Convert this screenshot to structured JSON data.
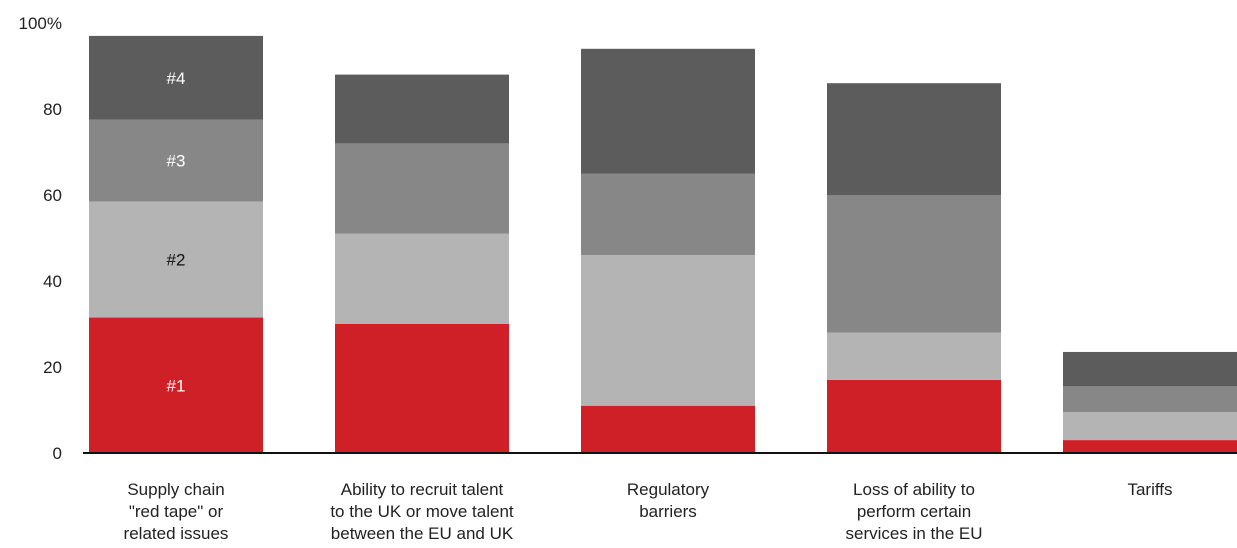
{
  "chart_data": {
    "type": "bar",
    "stacked": true,
    "orientation": "vertical",
    "ylim": [
      0,
      100
    ],
    "yticks": [
      "0",
      "20",
      "40",
      "60",
      "80",
      "100%"
    ],
    "ytick_values": [
      0,
      20,
      40,
      60,
      80,
      100
    ],
    "grid": false,
    "legend": "none",
    "categories": [
      [
        "Supply chain",
        "\"red tape\" or",
        "related issues"
      ],
      [
        "Ability to recruit talent",
        "to the UK or move talent",
        "between the EU and UK"
      ],
      [
        "Regulatory",
        "barriers"
      ],
      [
        "Loss of ability to",
        "perform certain",
        "services in the EU"
      ],
      [
        "Tariffs"
      ]
    ],
    "series": [
      {
        "name": "#1",
        "color": "#cf2027",
        "label_color": "#ffffff",
        "values": [
          31.5,
          30,
          11,
          17,
          3
        ]
      },
      {
        "name": "#2",
        "color": "#b4b4b4",
        "label_color": "#111111",
        "values": [
          27,
          21,
          35,
          11,
          6.5
        ]
      },
      {
        "name": "#3",
        "color": "#878787",
        "label_color": "#ffffff",
        "values": [
          19,
          21,
          19,
          32,
          6
        ]
      },
      {
        "name": "#4",
        "color": "#5c5c5c",
        "label_color": "#ffffff",
        "values": [
          19.5,
          16,
          29,
          26,
          8
        ]
      }
    ],
    "segment_labels_on_category": 0
  }
}
